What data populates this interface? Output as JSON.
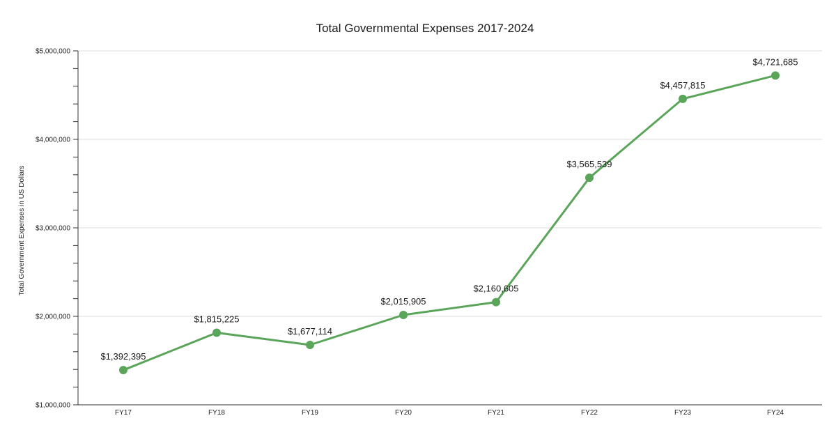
{
  "chart_data": {
    "type": "line",
    "title": "Total Governmental Expenses 2017-2024",
    "xlabel": "",
    "ylabel": "Total Government Expenses in US Dollars",
    "categories": [
      "FY17",
      "FY18",
      "FY19",
      "FY20",
      "FY21",
      "FY22",
      "FY23",
      "FY24"
    ],
    "values": [
      1392395,
      1815225,
      1677114,
      2015905,
      2160605,
      3565539,
      4457815,
      4721685
    ],
    "data_labels": [
      "$1,392,395",
      "$1,815,225",
      "$1,677,114",
      "$2,015,905",
      "$2,160,605",
      "$3,565,539",
      "$4,457,815",
      "$4,721,685"
    ],
    "ylim": [
      1000000,
      5000000
    ],
    "yticks": [
      1000000,
      2000000,
      3000000,
      4000000,
      5000000
    ],
    "ytick_labels": [
      "$1,000,000",
      "$2,000,000",
      "$3,000,000",
      "$4,000,000",
      "$5,000,000"
    ],
    "grid": "horizontal",
    "legend": "none",
    "colors": {
      "series": "#5aa55a",
      "grid": "#dddddd",
      "axis": "#333333"
    }
  }
}
